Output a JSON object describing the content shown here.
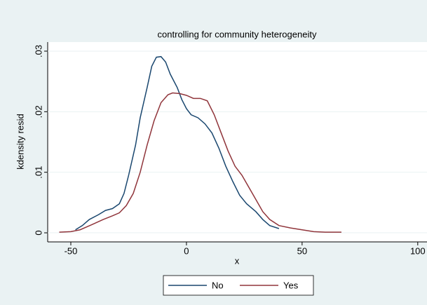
{
  "chart_data": {
    "type": "line",
    "title": "controlling for community heterogeneity",
    "xlabel": "x",
    "ylabel": "kdensity resid",
    "xlim": [
      -60,
      104
    ],
    "xticks": [
      -50,
      0,
      50,
      100
    ],
    "ylim": [
      -0.0015,
      0.0315
    ],
    "yticks": [
      0,
      {
        "value": 0.01,
        "label": ".01"
      },
      {
        "value": 0.02,
        "label": ".02"
      },
      {
        "value": 0.03,
        "label": ".03"
      }
    ],
    "grid": true,
    "legend": "bottom",
    "series": [
      {
        "name": "No",
        "color": "#1a476f",
        "x": [
          -48,
          -45,
          -42,
          -38,
          -35,
          -32,
          -29,
          -27,
          -25,
          -22,
          -20,
          -17,
          -15,
          -13,
          -11,
          -9,
          -7,
          -4,
          -2,
          0,
          2,
          5,
          8,
          11,
          14,
          17,
          20,
          23,
          26,
          30,
          33,
          36,
          40
        ],
        "values": [
          0.0005,
          0.0012,
          0.0022,
          0.003,
          0.0037,
          0.004,
          0.0048,
          0.0065,
          0.0095,
          0.0145,
          0.019,
          0.024,
          0.0275,
          0.029,
          0.0291,
          0.0282,
          0.0262,
          0.024,
          0.022,
          0.0205,
          0.0195,
          0.019,
          0.018,
          0.0165,
          0.014,
          0.011,
          0.0085,
          0.0062,
          0.0048,
          0.0035,
          0.0022,
          0.0012,
          0.0007
        ]
      },
      {
        "name": "Yes",
        "color": "#90353b",
        "x": [
          -55,
          -50,
          -46,
          -43,
          -40,
          -36,
          -32,
          -29,
          -26,
          -23,
          -20,
          -17,
          -14,
          -11,
          -8,
          -6,
          -3,
          0,
          3,
          6,
          9,
          12,
          15,
          18,
          21,
          24,
          27,
          30,
          33,
          36,
          40,
          45,
          50,
          55,
          60,
          67
        ],
        "values": [
          0.0001,
          0.0002,
          0.0005,
          0.001,
          0.0015,
          0.0022,
          0.0028,
          0.0033,
          0.0045,
          0.0065,
          0.01,
          0.0145,
          0.0185,
          0.0215,
          0.0228,
          0.0231,
          0.023,
          0.0227,
          0.0222,
          0.0222,
          0.0218,
          0.0195,
          0.0165,
          0.0135,
          0.011,
          0.0095,
          0.0075,
          0.0055,
          0.0035,
          0.0022,
          0.0012,
          0.0008,
          0.0005,
          0.0002,
          0.0001,
          0.0001
        ]
      }
    ]
  }
}
